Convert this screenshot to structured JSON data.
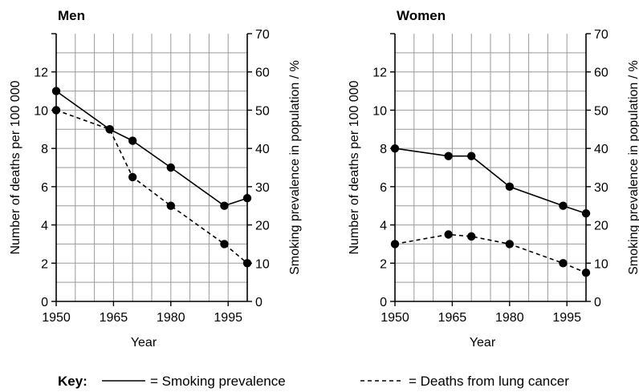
{
  "chart_data": [
    {
      "type": "line",
      "title": "Men",
      "xlabel": "Year",
      "ylabel_left": "Number of deaths per 100 000",
      "ylabel_right": "Smoking prevalence in population / %",
      "x_ticks": [
        "1950",
        "1965",
        "1980",
        "1995"
      ],
      "y_left_ticks": [
        "0",
        "2",
        "4",
        "6",
        "8",
        "10",
        "12"
      ],
      "y_right_ticks": [
        "0",
        "10",
        "20",
        "30",
        "40",
        "50",
        "60",
        "70"
      ],
      "xlim": [
        1950,
        2000
      ],
      "ylim_left": [
        0,
        14
      ],
      "ylim_right": [
        0,
        70
      ],
      "grid": true,
      "series": [
        {
          "name": "Smoking prevalence",
          "axis": "right",
          "style": "solid",
          "x": [
            1950,
            1964,
            1970,
            1980,
            1994,
            2000
          ],
          "values": [
            55,
            45,
            42,
            35,
            25,
            27
          ]
        },
        {
          "name": "Deaths from lung cancer",
          "axis": "left",
          "style": "dashed",
          "x": [
            1950,
            1964,
            1970,
            1980,
            1994,
            2000
          ],
          "values": [
            10,
            9,
            6.5,
            5,
            3,
            2
          ]
        }
      ]
    },
    {
      "type": "line",
      "title": "Women",
      "xlabel": "Year",
      "ylabel_left": "Number of deaths per 100 000",
      "ylabel_right": "Smoking prevalence in population / %",
      "x_ticks": [
        "1950",
        "1965",
        "1980",
        "1995"
      ],
      "y_left_ticks": [
        "0",
        "2",
        "4",
        "6",
        "8",
        "10",
        "12"
      ],
      "y_right_ticks": [
        "0",
        "10",
        "20",
        "30",
        "40",
        "50",
        "60",
        "70"
      ],
      "xlim": [
        1950,
        2000
      ],
      "ylim_left": [
        0,
        14
      ],
      "ylim_right": [
        0,
        70
      ],
      "grid": true,
      "series": [
        {
          "name": "Smoking prevalence",
          "axis": "right",
          "style": "solid",
          "x": [
            1950,
            1964,
            1970,
            1980,
            1994,
            2000
          ],
          "values": [
            40,
            38,
            38,
            30,
            25,
            23
          ]
        },
        {
          "name": "Deaths from lung cancer",
          "axis": "left",
          "style": "dashed",
          "x": [
            1950,
            1964,
            1970,
            1980,
            1994,
            2000
          ],
          "values": [
            3,
            3.5,
            3.4,
            3,
            2,
            1.5
          ]
        }
      ]
    }
  ],
  "key": {
    "label": "Key:",
    "solid_text": "= Smoking prevalence",
    "dashed_text": "= Deaths from lung cancer"
  },
  "colors": {
    "ink": "#000000",
    "grid": "#9a9a9a",
    "background": "#ffffff"
  }
}
